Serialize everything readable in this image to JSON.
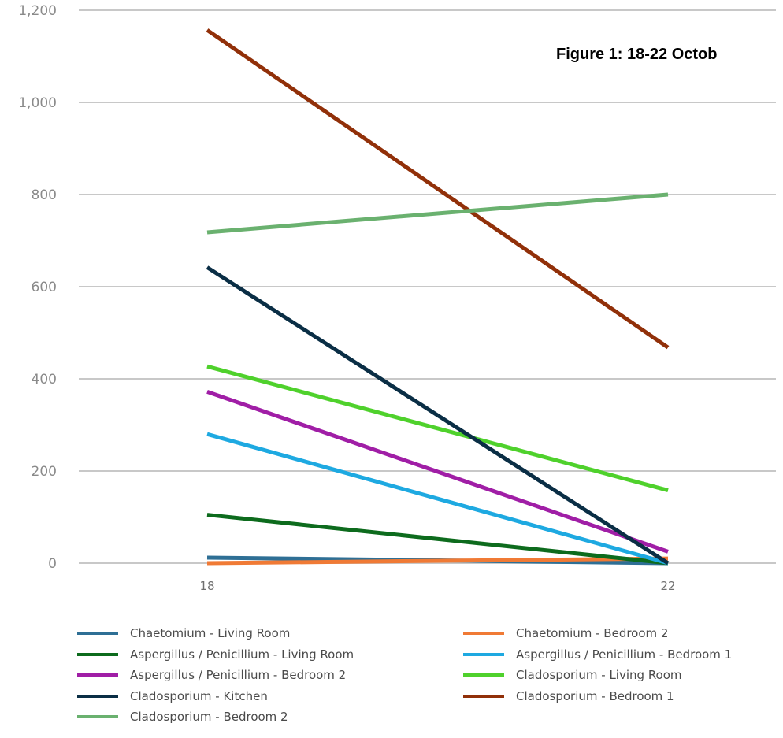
{
  "chart_data": {
    "type": "line",
    "title": "Figure 1: 18-22 Octob",
    "x": [
      "18",
      "22"
    ],
    "ylim": [
      0,
      1200
    ],
    "yticks": [
      "0",
      "200",
      "400",
      "600",
      "800",
      "1,000",
      "1,200"
    ],
    "grid": true,
    "legend_position": "bottom",
    "series": [
      {
        "name": "Chaetomium - Living Room",
        "color": "#2e6f95",
        "values": [
          12,
          0
        ]
      },
      {
        "name": "Chaetomium - Bedroom 2",
        "color": "#f07a35",
        "values": [
          0,
          10
        ]
      },
      {
        "name": "Aspergillus / Penicillium - Living Room",
        "color": "#0d6b1d",
        "values": [
          105,
          0
        ]
      },
      {
        "name": "Aspergillus / Penicillium - Bedroom 1",
        "color": "#1ea9e1",
        "values": [
          280,
          0
        ]
      },
      {
        "name": "Aspergillus / Penicillium - Bedroom 2",
        "color": "#a01ea6",
        "values": [
          372,
          25
        ]
      },
      {
        "name": "Cladosporium  - Living Room",
        "color": "#4fd12c",
        "values": [
          427,
          158
        ]
      },
      {
        "name": "Cladosporium - Kitchen",
        "color": "#0a2e45",
        "values": [
          642,
          0
        ]
      },
      {
        "name": "Cladosporium  - Bedroom 1",
        "color": "#913009",
        "values": [
          1157,
          468
        ]
      },
      {
        "name": "Cladosporium - Bedroom 2",
        "color": "#6ab16f",
        "values": [
          718,
          800
        ]
      }
    ]
  }
}
